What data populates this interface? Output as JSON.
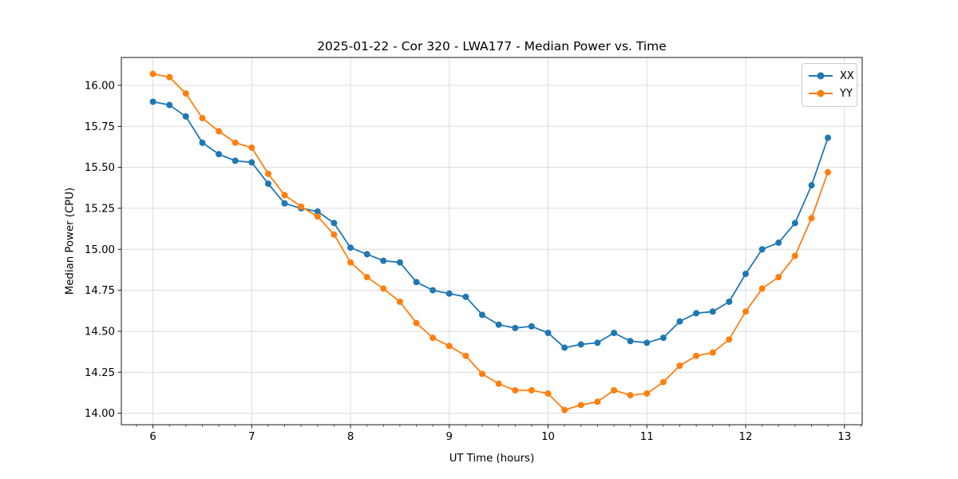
{
  "chart_data": {
    "type": "line",
    "title": "2025-01-22 - Cor 320 - LWA177 - Median Power vs. Time",
    "xlabel": "UT Time (hours)",
    "ylabel": "Median Power (CPU)",
    "x": [
      6.0,
      6.167,
      6.333,
      6.5,
      6.667,
      6.833,
      7.0,
      7.167,
      7.333,
      7.5,
      7.667,
      7.833,
      8.0,
      8.167,
      8.333,
      8.5,
      8.667,
      8.833,
      9.0,
      9.167,
      9.333,
      9.5,
      9.667,
      9.833,
      10.0,
      10.167,
      10.333,
      10.5,
      10.667,
      10.833,
      11.0,
      11.167,
      11.333,
      11.5,
      11.667,
      11.833,
      12.0,
      12.167,
      12.333,
      12.5,
      12.667,
      12.833
    ],
    "series": [
      {
        "name": "XX",
        "color": "#1f77b4",
        "values": [
          15.9,
          15.88,
          15.81,
          15.65,
          15.58,
          15.54,
          15.53,
          15.4,
          15.28,
          15.25,
          15.23,
          15.16,
          15.01,
          14.97,
          14.93,
          14.92,
          14.8,
          14.75,
          14.73,
          14.71,
          14.6,
          14.54,
          14.52,
          14.53,
          14.49,
          14.4,
          14.42,
          14.43,
          14.49,
          14.44,
          14.43,
          14.46,
          14.56,
          14.61,
          14.62,
          14.68,
          14.85,
          15.0,
          15.04,
          15.16,
          15.39,
          15.68
        ]
      },
      {
        "name": "YY",
        "color": "#ff7f0e",
        "values": [
          16.07,
          16.05,
          15.95,
          15.8,
          15.72,
          15.65,
          15.62,
          15.46,
          15.33,
          15.26,
          15.2,
          15.09,
          14.92,
          14.83,
          14.76,
          14.68,
          14.55,
          14.46,
          14.41,
          14.35,
          14.24,
          14.18,
          14.14,
          14.14,
          14.12,
          14.02,
          14.05,
          14.07,
          14.14,
          14.11,
          14.12,
          14.19,
          14.29,
          14.35,
          14.37,
          14.45,
          14.62,
          14.76,
          14.83,
          14.96,
          15.19,
          15.47
        ]
      }
    ],
    "xlim": [
      5.68,
      13.18
    ],
    "ylim": [
      13.93,
      16.17
    ],
    "xticks": [
      6,
      7,
      8,
      9,
      10,
      11,
      12,
      13
    ],
    "yticks": [
      14.0,
      14.25,
      14.5,
      14.75,
      15.0,
      15.25,
      15.5,
      15.75,
      16.0
    ],
    "x_minor_tick_step": 0.1667,
    "grid": true,
    "legend_position": "upper right",
    "marker": "circle"
  },
  "style_colors": {
    "grid": "#dcdcdc",
    "spine": "#1a1a1a",
    "tick": "#1a1a1a",
    "text": "#000000",
    "legend_border": "#cccccc"
  }
}
